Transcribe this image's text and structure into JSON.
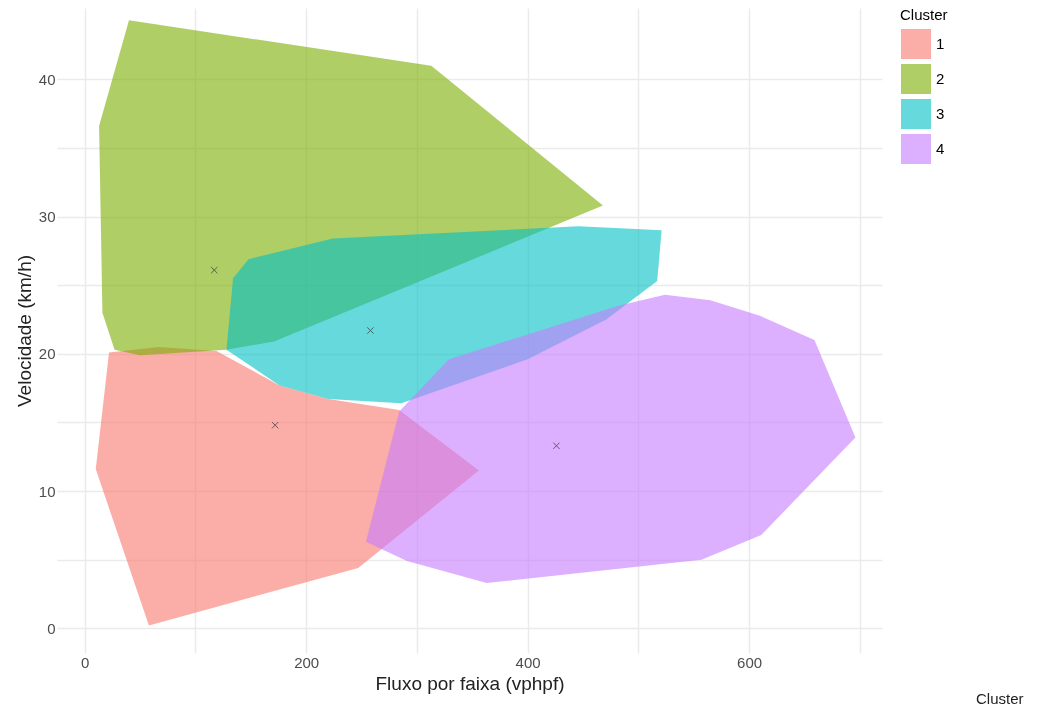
{
  "chart_data": {
    "type": "area",
    "xlabel": "Fluxo por faixa (vphpf)",
    "ylabel": "Velocidade (km/h)",
    "legend_title": "Cluster",
    "legend": "right",
    "grid": true,
    "xlim": [
      -25,
      720
    ],
    "ylim": [
      -1.8,
      45.2
    ],
    "xticks": [
      0,
      {
        "value": 100,
        "label": null
      },
      200,
      {
        "value": 300,
        "label": null
      },
      400,
      {
        "value": 500,
        "label": null
      },
      600,
      {
        "value": 700,
        "label": null
      }
    ],
    "yticks": [
      0,
      {
        "value": 5,
        "label": null
      },
      10,
      {
        "value": 15,
        "label": null
      },
      20,
      {
        "value": 25,
        "label": null
      },
      30,
      {
        "value": 35,
        "label": null
      },
      40
    ],
    "annotations": [
      "Cluster"
    ],
    "series": [
      {
        "name": "1",
        "color": "#f8766d",
        "x": [
          22,
          67,
          119,
          176,
          220,
          284,
          356,
          247,
          58,
          10
        ],
        "values": [
          20.1,
          20.5,
          20.2,
          17.7,
          16.7,
          15.9,
          11.5,
          4.4,
          0.2,
          11.6
        ]
      },
      {
        "name": "2",
        "color": "#7cae00",
        "x": [
          40,
          313,
          468,
          171,
          128,
          50,
          27,
          16,
          13
        ],
        "values": [
          44.3,
          41.0,
          30.8,
          20.9,
          20.3,
          19.9,
          20.3,
          23.0,
          36.6
        ]
      },
      {
        "name": "3",
        "color": "#00bfc4",
        "x": [
          128,
          134,
          148,
          224,
          446,
          521,
          517,
          471,
          400,
          286,
          220,
          176
        ],
        "values": [
          20.3,
          25.5,
          26.9,
          28.4,
          29.3,
          29.0,
          25.3,
          22.5,
          19.6,
          16.4,
          16.7,
          17.7
        ]
      },
      {
        "name": "4",
        "color": "#c77cff",
        "x": [
          254,
          284,
          329,
          482,
          524,
          565,
          609,
          659,
          696,
          611,
          557,
          363,
          291
        ],
        "values": [
          6.3,
          15.8,
          19.6,
          23.5,
          24.3,
          23.9,
          22.8,
          21.0,
          13.9,
          6.8,
          5.0,
          3.3,
          4.9
        ]
      },
      {
        "type": "scatter",
        "color": "#333333",
        "marker": "cross",
        "x": [
          117,
          258,
          172,
          426
        ],
        "values": [
          26.1,
          21.7,
          14.8,
          13.3
        ]
      }
    ]
  }
}
